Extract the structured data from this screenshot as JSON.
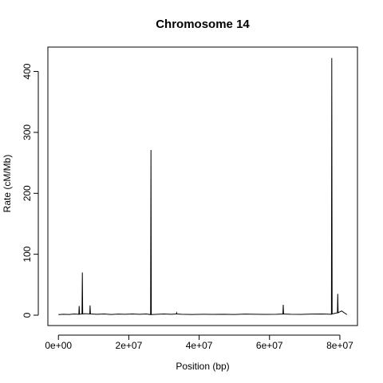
{
  "chart_data": {
    "type": "line",
    "title": "Chromosome 14",
    "xlabel": "Position (bp)",
    "ylabel": "Rate (cM/Mb)",
    "xlim": [
      -3000000,
      85000000
    ],
    "ylim": [
      -17,
      440
    ],
    "x_ticks": [
      {
        "value": 0,
        "label": "0e+00"
      },
      {
        "value": 20000000,
        "label": "2e+07"
      },
      {
        "value": 40000000,
        "label": "4e+07"
      },
      {
        "value": 60000000,
        "label": "6e+07"
      },
      {
        "value": 80000000,
        "label": "8e+07"
      }
    ],
    "y_ticks": [
      {
        "value": 0,
        "label": "0"
      },
      {
        "value": 100,
        "label": "100"
      },
      {
        "value": 200,
        "label": "200"
      },
      {
        "value": 300,
        "label": "300"
      },
      {
        "value": 400,
        "label": "400"
      }
    ],
    "grid": false,
    "series": [
      {
        "color": "#000000",
        "x": [
          0,
          1500000,
          3000000,
          4500000,
          5800000,
          5900000,
          6000000,
          6700000,
          6800000,
          6900000,
          7500000,
          8900000,
          9000000,
          9100000,
          11000000,
          13000000,
          15000000,
          17000000,
          19000000,
          21000000,
          23000000,
          25000000,
          26200000,
          26300000,
          26400000,
          28000000,
          30000000,
          32000000,
          33500000,
          33600000,
          33700000,
          35000000,
          38000000,
          41000000,
          44000000,
          47000000,
          50000000,
          53000000,
          56000000,
          59000000,
          62000000,
          63800000,
          63900000,
          64000000,
          66000000,
          69000000,
          72000000,
          75000000,
          77600000,
          77700000,
          77800000,
          78500000,
          79300000,
          79400000,
          79500000,
          80500000,
          81500000,
          82000000
        ],
        "y": [
          1,
          1.5,
          1.2,
          2,
          1.5,
          15,
          1.5,
          2,
          70,
          2,
          2.5,
          2,
          16,
          2,
          1.5,
          2,
          1.2,
          1.8,
          1.5,
          2,
          1.5,
          2,
          1,
          271,
          1,
          1.5,
          2,
          1.5,
          2,
          4,
          2,
          1.5,
          1.2,
          1.5,
          1.3,
          1.5,
          1.2,
          1.8,
          1.5,
          1.3,
          1.5,
          2,
          17,
          2,
          1.5,
          1.3,
          1.8,
          2,
          1.5,
          422,
          2,
          3,
          4,
          35,
          4,
          7,
          3,
          1
        ]
      }
    ]
  }
}
